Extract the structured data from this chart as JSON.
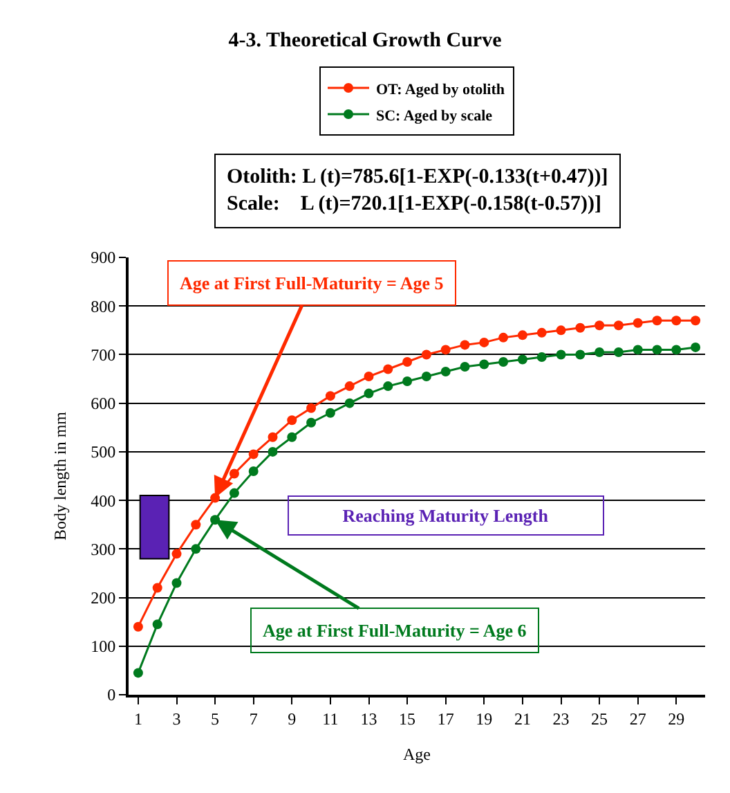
{
  "chart_data": {
    "type": "line",
    "title": "4-3. Theoretical Growth Curve",
    "xlabel": "Age",
    "ylabel": "Body length in mm",
    "x": [
      1,
      2,
      3,
      4,
      5,
      6,
      7,
      8,
      9,
      10,
      11,
      12,
      13,
      14,
      15,
      16,
      17,
      18,
      19,
      20,
      21,
      22,
      23,
      24,
      25,
      26,
      27,
      28,
      29,
      30
    ],
    "series": [
      {
        "name": "OT: Aged by otolith",
        "color": "#ff2a00",
        "values": [
          140,
          220,
          290,
          350,
          405,
          455,
          495,
          530,
          565,
          590,
          615,
          635,
          655,
          670,
          685,
          700,
          710,
          720,
          725,
          735,
          740,
          745,
          750,
          755,
          760,
          760,
          765,
          770,
          770,
          770
        ]
      },
      {
        "name": "SC: Aged by scale",
        "color": "#007a1e",
        "values": [
          45,
          145,
          230,
          300,
          360,
          415,
          460,
          500,
          530,
          560,
          580,
          600,
          620,
          635,
          645,
          655,
          665,
          675,
          680,
          685,
          690,
          695,
          700,
          700,
          705,
          705,
          710,
          710,
          710,
          715
        ]
      }
    ],
    "xlim": [
      0.5,
      30.5
    ],
    "xticks": [
      1,
      3,
      5,
      7,
      9,
      11,
      13,
      15,
      17,
      19,
      21,
      23,
      25,
      27,
      29
    ],
    "ylim": [
      0,
      900
    ],
    "yticks": [
      0,
      100,
      200,
      300,
      400,
      500,
      600,
      700,
      800,
      900
    ],
    "grid": "y",
    "legend": "top",
    "marker": "circle",
    "line_style": "solid",
    "bands": [
      {
        "axis": "y",
        "from": 280,
        "to": 410,
        "label": "Reaching Maturity Length",
        "color": "#5a22b4"
      }
    ],
    "annotations": [
      "Otolith: L (t)=785.6[1-EXP(-0.133(t+0.47))]\nScale:    L (t)=720.1[1-EXP(-0.158(t-0.57))]",
      {
        "text": "Age at First Full-Maturity = Age 5",
        "x": 5,
        "y": 405
      },
      {
        "text": "Age at First Full-Maturity = Age 6",
        "x": 5,
        "y": 360
      }
    ]
  }
}
